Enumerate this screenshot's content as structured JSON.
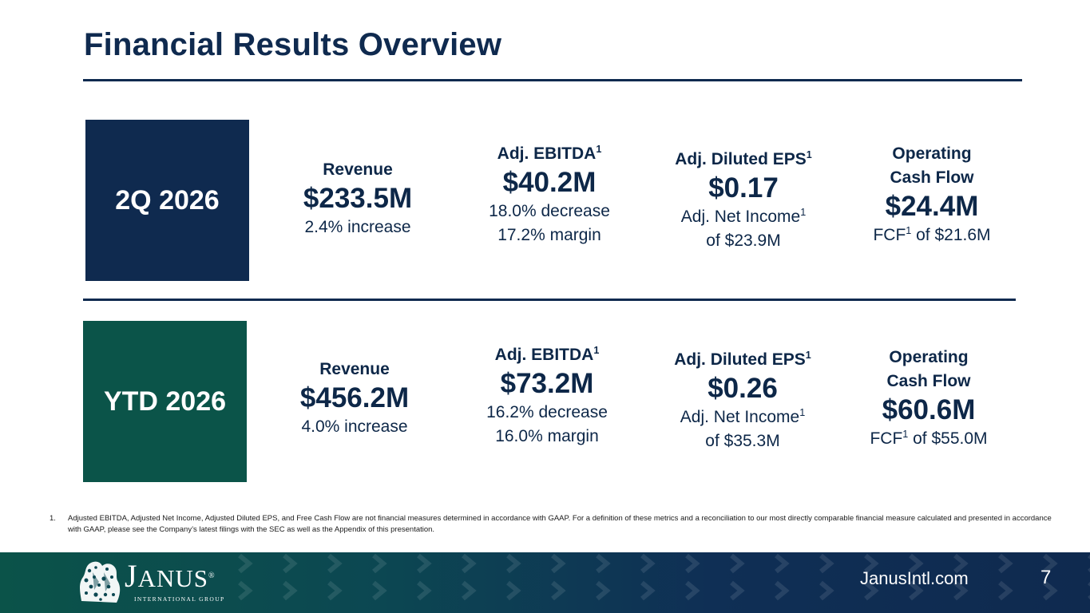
{
  "title": "Financial Results Overview",
  "colors": {
    "navy": "#0f2a4f",
    "teal": "#0b5449"
  },
  "rows": [
    {
      "period": "2Q 2026",
      "revenue": {
        "label": "Revenue",
        "value": "$233.5M",
        "sub1": "2.4% increase"
      },
      "ebitda": {
        "label": "Adj. EBITDA",
        "sup": "1",
        "value": "$40.2M",
        "sub1": "18.0% decrease",
        "sub2": "17.2% margin"
      },
      "eps": {
        "label": "Adj. Diluted EPS",
        "sup": "1",
        "value": "$0.17",
        "sub1": "Adj. Net Income",
        "sub1_sup": "1",
        "sub2": "of $23.9M"
      },
      "ocf": {
        "label1": "Operating",
        "label2": "Cash Flow",
        "value": "$24.4M",
        "sub_pre": "FCF",
        "sub_sup": "1",
        "sub_post": " of $21.6M"
      }
    },
    {
      "period": "YTD 2026",
      "revenue": {
        "label": "Revenue",
        "value": "$456.2M",
        "sub1": "4.0% increase"
      },
      "ebitda": {
        "label": "Adj. EBITDA",
        "sup": "1",
        "value": "$73.2M",
        "sub1": "16.2% decrease",
        "sub2": "16.0% margin"
      },
      "eps": {
        "label": "Adj. Diluted EPS",
        "sup": "1",
        "value": "$0.26",
        "sub1": "Adj. Net Income",
        "sub1_sup": "1",
        "sub2": "of $35.3M"
      },
      "ocf": {
        "label1": "Operating",
        "label2": "Cash Flow",
        "value": "$60.6M",
        "sub_pre": "FCF",
        "sub_sup": "1",
        "sub_post": " of $55.0M"
      }
    }
  ],
  "footnote": {
    "number": "1.",
    "text": "Adjusted EBITDA, Adjusted Net Income, Adjusted Diluted EPS, and Free Cash Flow are not financial measures determined in accordance with GAAP. For a definition of these metrics and a reconciliation to our most directly comparable financial measure calculated and presented in accordance with GAAP, please see the Company’s latest filings with the SEC as well as the Appendix of this presentation."
  },
  "footer": {
    "logo": {
      "name_initial": "J",
      "name_rest": "ANUS",
      "tm": "®",
      "tagline": "INTERNATIONAL GROUP",
      "icon": "janus-crest-icon"
    },
    "website": "JanusIntl.com",
    "page_number": "7"
  }
}
